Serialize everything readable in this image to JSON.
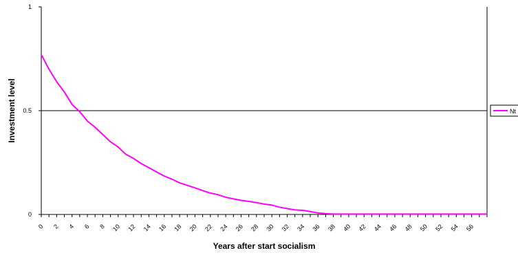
{
  "chart_data": {
    "type": "line",
    "xlabel": "Years after start socialism",
    "ylabel": "Investment level",
    "xlim": [
      0,
      58
    ],
    "ylim": [
      0,
      1
    ],
    "yticks": [
      {
        "value": 0,
        "label": "0"
      },
      {
        "value": 0.5,
        "label": "0.5"
      },
      {
        "value": 1,
        "label": "1"
      }
    ],
    "xtick_labels": [
      "0",
      "2",
      "4",
      "6",
      "8",
      "10",
      "12",
      "14",
      "16",
      "18",
      "20",
      "22",
      "24",
      "26",
      "28",
      "30",
      "32",
      "34",
      "36",
      "38",
      "40",
      "42",
      "44",
      "46",
      "48",
      "50",
      "52",
      "54",
      "56"
    ],
    "grid": {
      "horizontal_line_at": 0.5
    },
    "legend": {
      "position": "right",
      "entries": [
        "Nt"
      ]
    },
    "series": [
      {
        "name": "Nt",
        "color": "#ff00ff",
        "x": [
          0,
          1,
          2,
          3,
          4,
          5,
          6,
          7,
          8,
          9,
          10,
          11,
          12,
          13,
          14,
          15,
          16,
          17,
          18,
          19,
          20,
          21,
          22,
          23,
          24,
          25,
          26,
          27,
          28,
          29,
          30,
          31,
          32,
          33,
          34,
          35,
          36,
          37,
          38,
          39,
          40,
          41,
          42,
          43,
          44,
          45,
          46,
          47,
          48,
          49,
          50,
          51,
          52,
          53,
          54,
          55,
          56,
          57,
          58
        ],
        "values": [
          0.77,
          0.7,
          0.64,
          0.59,
          0.53,
          0.495,
          0.45,
          0.42,
          0.385,
          0.35,
          0.325,
          0.29,
          0.27,
          0.245,
          0.225,
          0.205,
          0.185,
          0.17,
          0.152,
          0.14,
          0.128,
          0.115,
          0.103,
          0.095,
          0.083,
          0.075,
          0.068,
          0.063,
          0.057,
          0.05,
          0.045,
          0.035,
          0.028,
          0.022,
          0.02,
          0.014,
          0.007,
          0.004,
          0.002,
          0.002,
          0.002,
          0.002,
          0.002,
          0.002,
          0.002,
          0.002,
          0.002,
          0.002,
          0.002,
          0.002,
          0.002,
          0.002,
          0.002,
          0.002,
          0.002,
          0.002,
          0.002,
          0.002,
          0.002
        ]
      }
    ]
  }
}
